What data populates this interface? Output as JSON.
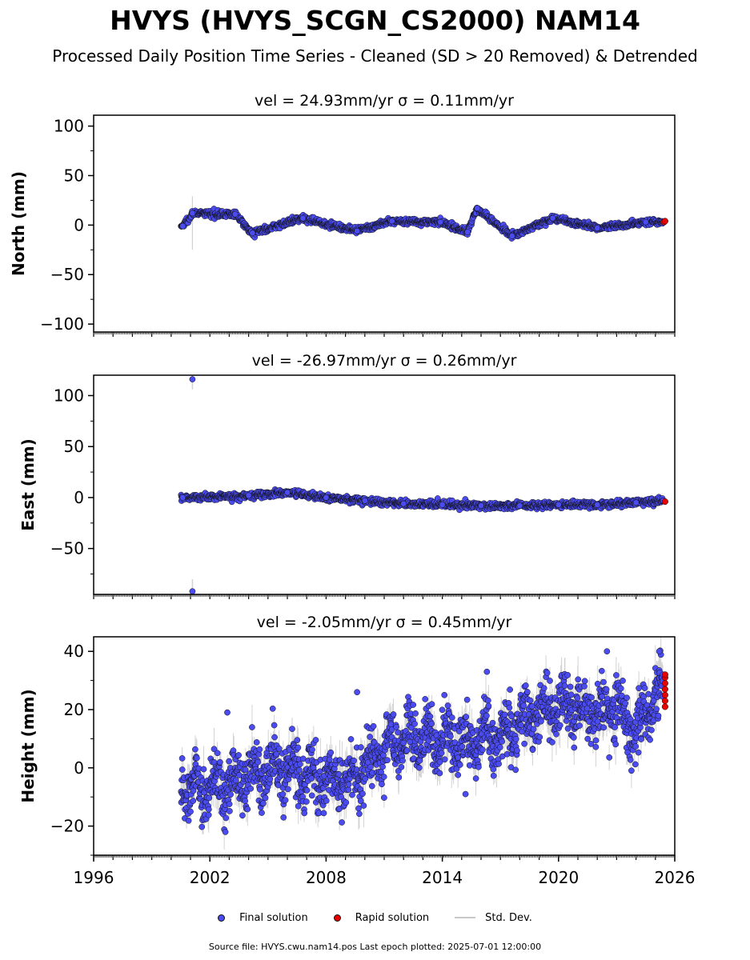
{
  "title": "HVYS (HVYS_SCGN_CS2000) NAM14",
  "subtitle": "Processed Daily Position Time Series - Cleaned (SD > 20 Removed) & Detrended",
  "colors": {
    "final_solution": "#4b4bf2",
    "rapid_solution": "#e80000",
    "std_dev": "#c8c8c8",
    "marker_edge": "#111111"
  },
  "legend": [
    {
      "label": "Final solution",
      "kind": "final"
    },
    {
      "label": "Rapid solution",
      "kind": "rapid"
    },
    {
      "label": "Std. Dev.",
      "kind": "stddev"
    }
  ],
  "footer": "Source file: HVYS.cwu.nam14.pos  Last epoch plotted: 2025-07-01 12:00:00",
  "chart_data": [
    {
      "type": "scatter",
      "title": "vel = 24.93mm/yr   σ = 0.11mm/yr",
      "ylabel": "North (mm)",
      "xlim": [
        1996,
        2026
      ],
      "ylim": [
        -108,
        111
      ],
      "yticks": [
        -100,
        -50,
        0,
        50,
        100
      ],
      "ytick_labels": [
        "−100",
        "−50",
        "0",
        "50",
        "100"
      ],
      "xtick_labels": [],
      "series": [
        {
          "name": "Final solution",
          "points": [
            [
              2000.6,
              -1
            ],
            [
              2001.1,
              12
            ],
            [
              2003.3,
              11
            ],
            [
              2004.2,
              -8
            ],
            [
              2006.8,
              7
            ],
            [
              2009.6,
              -6
            ],
            [
              2011.4,
              4
            ],
            [
              2013.9,
              3
            ],
            [
              2015.3,
              -7
            ],
            [
              2015.8,
              17
            ],
            [
              2017.6,
              -11
            ],
            [
              2019.7,
              7
            ],
            [
              2022.0,
              -3
            ],
            [
              2024.5,
              3
            ],
            [
              2025.4,
              3
            ]
          ]
        },
        {
          "name": "Rapid solution",
          "points": [
            [
              2025.45,
              3
            ],
            [
              2025.5,
              4
            ]
          ]
        }
      ]
    },
    {
      "type": "scatter",
      "title": "vel = -26.97mm/yr   σ = 0.26mm/yr",
      "ylabel": "East (mm)",
      "xlim": [
        1996,
        2026
      ],
      "ylim": [
        -95,
        120
      ],
      "yticks": [
        -50,
        0,
        50,
        100
      ],
      "ytick_labels": [
        "−50",
        "0",
        "50",
        "100"
      ],
      "xtick_labels": [],
      "series": [
        {
          "name": "Final solution",
          "points": [
            [
              2000.6,
              0
            ],
            [
              2001.1,
              116
            ],
            [
              2001.1,
              -92
            ],
            [
              2004.0,
              2
            ],
            [
              2006.0,
              5
            ],
            [
              2008.0,
              0
            ],
            [
              2010.0,
              -3
            ],
            [
              2012.0,
              -6
            ],
            [
              2014.0,
              -7
            ],
            [
              2016.0,
              -8
            ],
            [
              2018.0,
              -8
            ],
            [
              2020.0,
              -7
            ],
            [
              2022.0,
              -7
            ],
            [
              2024.0,
              -5
            ],
            [
              2025.4,
              -3
            ]
          ]
        },
        {
          "name": "Rapid solution",
          "points": [
            [
              2025.5,
              -4
            ]
          ]
        }
      ]
    },
    {
      "type": "scatter",
      "title": "vel = -2.05mm/yr   σ = 0.45mm/yr",
      "ylabel": "Height (mm)",
      "xlim": [
        1996,
        2026
      ],
      "ylim": [
        -30,
        45
      ],
      "yticks": [
        -20,
        0,
        20,
        40
      ],
      "ytick_labels": [
        "−20",
        "0",
        "20",
        "40"
      ],
      "xticks": [
        1996,
        2002,
        2008,
        2014,
        2020,
        2026
      ],
      "xtick_labels": [
        "1996",
        "2002",
        "2008",
        "2014",
        "2020",
        "2026"
      ],
      "series": [
        {
          "name": "Final solution",
          "trend": [
            [
              2000.5,
              -4
            ],
            [
              2003.0,
              -4
            ],
            [
              2006.0,
              -3
            ],
            [
              2009.0,
              -2
            ],
            [
              2010.0,
              3
            ],
            [
              2012.0,
              7
            ],
            [
              2014.0,
              9
            ],
            [
              2016.0,
              12
            ],
            [
              2018.0,
              14
            ],
            [
              2020.0,
              18
            ],
            [
              2022.0,
              22
            ],
            [
              2023.0,
              24
            ],
            [
              2024.0,
              14
            ],
            [
              2025.0,
              22
            ],
            [
              2025.4,
              25
            ]
          ],
          "spread": 8,
          "outliers": [
            [
              2002.9,
              19
            ],
            [
              2002.8,
              -22
            ],
            [
              2009.6,
              26
            ],
            [
              2015.2,
              -9
            ],
            [
              2016.3,
              33
            ],
            [
              2022.5,
              40
            ],
            [
              2025.2,
              40
            ]
          ]
        },
        {
          "name": "Rapid solution",
          "points": [
            [
              2025.5,
              21
            ],
            [
              2025.5,
              23
            ],
            [
              2025.5,
              25
            ],
            [
              2025.5,
              27
            ],
            [
              2025.5,
              29
            ],
            [
              2025.5,
              31
            ],
            [
              2025.5,
              32
            ]
          ]
        }
      ]
    }
  ]
}
